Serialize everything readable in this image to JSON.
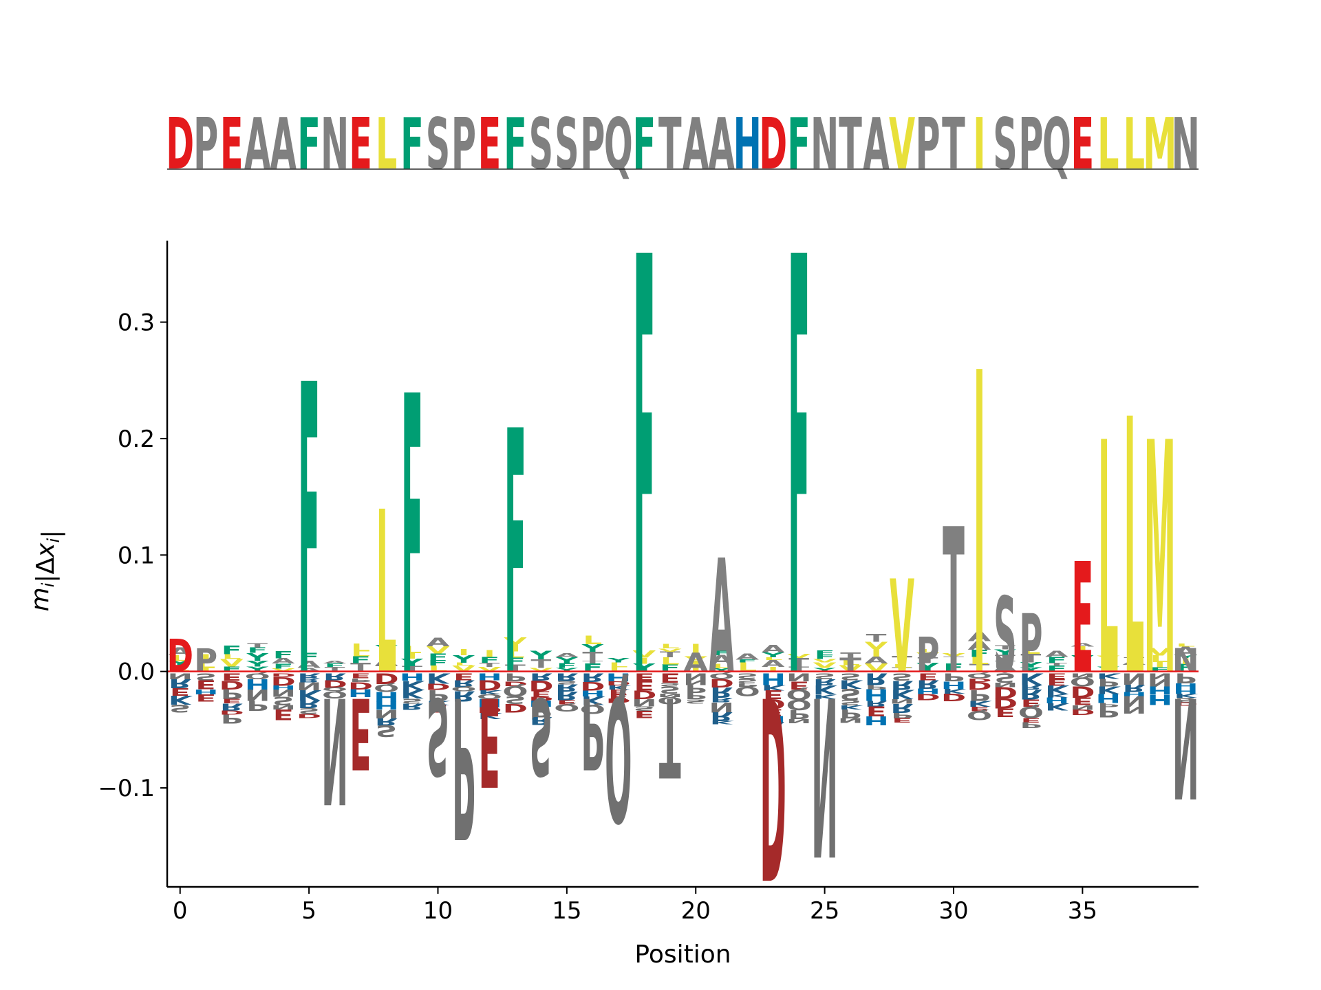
{
  "chart_data": {
    "type": "sequence_logo",
    "sequence": "DPEAAFNELFSPEFSSPQFTAAHDFNTAVPTISPQELLMN",
    "xlabel": "Position",
    "ylabel": "m_i|Δx_i|",
    "xlim": [
      -0.5,
      39.5
    ],
    "ylim": [
      -0.185,
      0.37
    ],
    "xticks": [
      0,
      5,
      10,
      15,
      20,
      25,
      30,
      35
    ],
    "xtick_labels": [
      "0",
      "5",
      "10",
      "15",
      "20",
      "25",
      "30",
      "35"
    ],
    "yticks": [
      -0.1,
      0.0,
      0.1,
      0.2,
      0.3
    ],
    "ytick_labels": [
      "−0.1",
      "0.0",
      "0.1",
      "0.2",
      "0.3"
    ],
    "baseline_color": "#e41a1c",
    "colors": {
      "acidic": "#e41a1c",
      "acidic_dark": "#a52a2a",
      "basic": "#1f5f8b",
      "histidine": "#0072b2",
      "hydrophobic": "#e8e03a",
      "aromatic": "#009e73",
      "polar": "#808080",
      "neutral_dark": "#707070"
    },
    "positive_letters": [
      {
        "pos": 0,
        "aa": "D",
        "value": 0.028
      },
      {
        "pos": 1,
        "aa": "P",
        "value": 0.02
      },
      {
        "pos": 5,
        "aa": "F",
        "value": 0.25
      },
      {
        "pos": 8,
        "aa": "L",
        "value": 0.14
      },
      {
        "pos": 9,
        "aa": "F",
        "value": 0.24
      },
      {
        "pos": 13,
        "aa": "F",
        "value": 0.21
      },
      {
        "pos": 18,
        "aa": "F",
        "value": 0.36
      },
      {
        "pos": 20,
        "aa": "A",
        "value": 0.016
      },
      {
        "pos": 21,
        "aa": "A",
        "value": 0.098
      },
      {
        "pos": 24,
        "aa": "F",
        "value": 0.36
      },
      {
        "pos": 26,
        "aa": "T",
        "value": 0.012
      },
      {
        "pos": 28,
        "aa": "V",
        "value": 0.08
      },
      {
        "pos": 29,
        "aa": "P",
        "value": 0.03
      },
      {
        "pos": 30,
        "aa": "T",
        "value": 0.125
      },
      {
        "pos": 31,
        "aa": "I",
        "value": 0.26
      },
      {
        "pos": 32,
        "aa": "S",
        "value": 0.065
      },
      {
        "pos": 33,
        "aa": "P",
        "value": 0.05
      },
      {
        "pos": 35,
        "aa": "E",
        "value": 0.095
      },
      {
        "pos": 36,
        "aa": "L",
        "value": 0.2
      },
      {
        "pos": 37,
        "aa": "L",
        "value": 0.22
      },
      {
        "pos": 38,
        "aa": "M",
        "value": 0.2
      },
      {
        "pos": 39,
        "aa": "N",
        "value": 0.02
      }
    ],
    "negative_letters": [
      {
        "pos": 6,
        "aa": "N",
        "value": -0.115
      },
      {
        "pos": 7,
        "aa": "E",
        "value": -0.085
      },
      {
        "pos": 10,
        "aa": "S",
        "value": -0.09
      },
      {
        "pos": 11,
        "aa": "P",
        "value": -0.145
      },
      {
        "pos": 12,
        "aa": "E",
        "value": -0.1
      },
      {
        "pos": 14,
        "aa": "S",
        "value": -0.09
      },
      {
        "pos": 16,
        "aa": "P",
        "value": -0.085
      },
      {
        "pos": 17,
        "aa": "Q",
        "value": -0.13
      },
      {
        "pos": 19,
        "aa": "T",
        "value": -0.092
      },
      {
        "pos": 23,
        "aa": "D",
        "value": -0.18
      },
      {
        "pos": 25,
        "aa": "N",
        "value": -0.16
      },
      {
        "pos": 39,
        "aa": "N",
        "value": -0.11
      }
    ]
  }
}
